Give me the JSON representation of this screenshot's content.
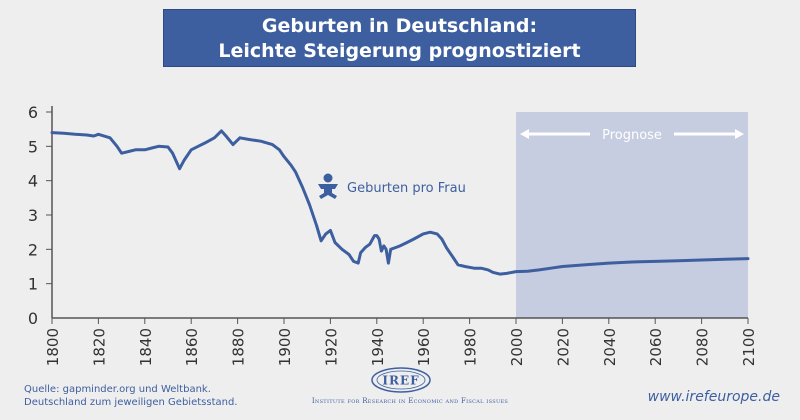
{
  "title": {
    "line1": "Geburten in Deutschland:",
    "line2": "Leichte Steigerung prognostiziert"
  },
  "chart_data": {
    "type": "line",
    "xlim": [
      1800,
      2100
    ],
    "ylim": [
      0,
      6
    ],
    "x_ticks": [
      1800,
      1820,
      1840,
      1860,
      1880,
      1900,
      1920,
      1940,
      1960,
      1980,
      2000,
      2020,
      2040,
      2060,
      2080,
      2100
    ],
    "y_ticks": [
      0,
      1,
      2,
      3,
      4,
      5,
      6
    ],
    "forecast_region": {
      "from": 2000,
      "to": 2100,
      "label": "Prognose"
    },
    "series": [
      {
        "name": "Geburten pro Frau",
        "color": "#3d5fa0",
        "points": [
          [
            1800,
            5.4
          ],
          [
            1805,
            5.38
          ],
          [
            1810,
            5.35
          ],
          [
            1815,
            5.33
          ],
          [
            1818,
            5.3
          ],
          [
            1820,
            5.35
          ],
          [
            1825,
            5.25
          ],
          [
            1828,
            5.0
          ],
          [
            1830,
            4.8
          ],
          [
            1833,
            4.85
          ],
          [
            1836,
            4.9
          ],
          [
            1840,
            4.9
          ],
          [
            1843,
            4.95
          ],
          [
            1846,
            5.0
          ],
          [
            1850,
            4.98
          ],
          [
            1852,
            4.8
          ],
          [
            1855,
            4.35
          ],
          [
            1857,
            4.6
          ],
          [
            1860,
            4.9
          ],
          [
            1863,
            5.0
          ],
          [
            1866,
            5.1
          ],
          [
            1870,
            5.25
          ],
          [
            1873,
            5.45
          ],
          [
            1875,
            5.3
          ],
          [
            1878,
            5.05
          ],
          [
            1881,
            5.25
          ],
          [
            1885,
            5.2
          ],
          [
            1890,
            5.15
          ],
          [
            1895,
            5.05
          ],
          [
            1898,
            4.9
          ],
          [
            1900,
            4.7
          ],
          [
            1903,
            4.45
          ],
          [
            1905,
            4.25
          ],
          [
            1908,
            3.8
          ],
          [
            1911,
            3.3
          ],
          [
            1914,
            2.7
          ],
          [
            1916,
            2.25
          ],
          [
            1918,
            2.45
          ],
          [
            1920,
            2.55
          ],
          [
            1922,
            2.2
          ],
          [
            1925,
            2.0
          ],
          [
            1928,
            1.85
          ],
          [
            1930,
            1.65
          ],
          [
            1932,
            1.6
          ],
          [
            1933,
            1.9
          ],
          [
            1935,
            2.05
          ],
          [
            1937,
            2.15
          ],
          [
            1939,
            2.4
          ],
          [
            1940,
            2.4
          ],
          [
            1941,
            2.3
          ],
          [
            1942,
            1.95
          ],
          [
            1943,
            2.1
          ],
          [
            1944,
            2.0
          ],
          [
            1945,
            1.6
          ],
          [
            1946,
            2.0
          ],
          [
            1948,
            2.05
          ],
          [
            1950,
            2.1
          ],
          [
            1953,
            2.2
          ],
          [
            1956,
            2.3
          ],
          [
            1960,
            2.45
          ],
          [
            1963,
            2.5
          ],
          [
            1966,
            2.45
          ],
          [
            1968,
            2.3
          ],
          [
            1970,
            2.05
          ],
          [
            1973,
            1.75
          ],
          [
            1975,
            1.55
          ],
          [
            1978,
            1.5
          ],
          [
            1982,
            1.45
          ],
          [
            1985,
            1.45
          ],
          [
            1988,
            1.4
          ],
          [
            1990,
            1.33
          ],
          [
            1993,
            1.28
          ],
          [
            1996,
            1.3
          ],
          [
            2000,
            1.35
          ],
          [
            2005,
            1.36
          ],
          [
            2010,
            1.4
          ],
          [
            2015,
            1.45
          ],
          [
            2020,
            1.5
          ],
          [
            2030,
            1.55
          ],
          [
            2040,
            1.6
          ],
          [
            2050,
            1.63
          ],
          [
            2060,
            1.65
          ],
          [
            2070,
            1.67
          ],
          [
            2080,
            1.69
          ],
          [
            2090,
            1.71
          ],
          [
            2100,
            1.73
          ]
        ]
      }
    ],
    "annotation": {
      "text": "Geburten pro Frau",
      "icon": "baby-icon"
    }
  },
  "footer": {
    "source_line1": "Quelle: gapminder.org und Weltbank.",
    "source_line2": "Deutschland zum jeweiligen Gebietsstand.",
    "logo_word": "IREF",
    "logo_subtitle": "Institute for Research in Economic and Fiscal issues",
    "website": "www.irefeurope.de"
  }
}
